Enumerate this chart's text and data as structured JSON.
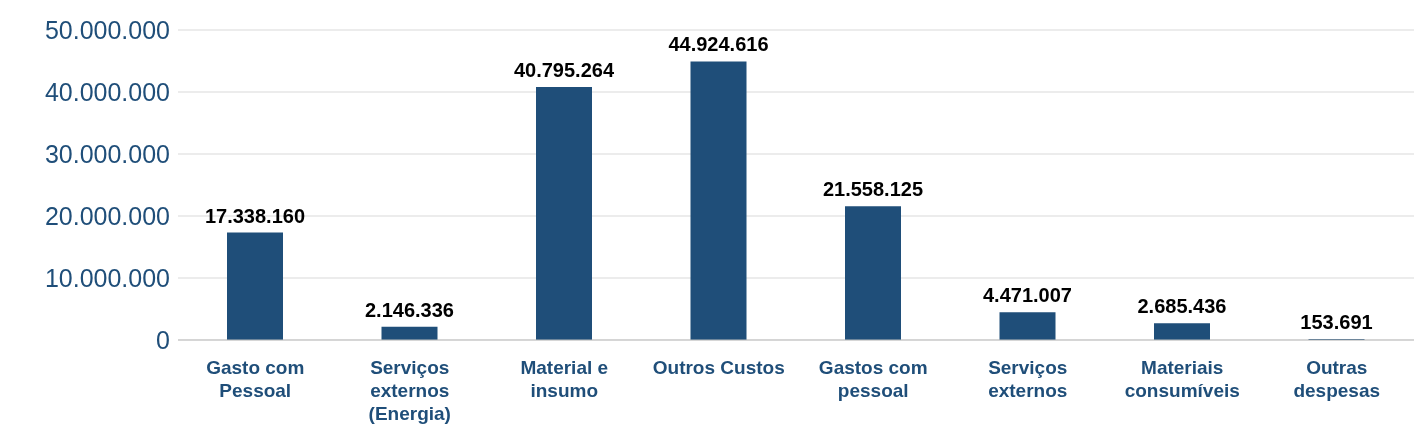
{
  "chart_data": {
    "type": "bar",
    "categories": [
      "Gasto com Pessoal",
      "Serviços externos (Energia)",
      "Material e insumo",
      "Outros Custos",
      "Gastos com pessoal",
      "Serviços externos",
      "Materiais consumíveis",
      "Outras despesas"
    ],
    "values": [
      17338160,
      2146336,
      40795264,
      44924616,
      21558125,
      4471007,
      2685436,
      153691
    ],
    "color": "#1f4e79",
    "ylim": [
      0,
      50000000
    ],
    "yticks": [
      {
        "value": 0,
        "label": "0"
      },
      {
        "value": 10000000,
        "label": "10.000.000"
      },
      {
        "value": 20000000,
        "label": "20.000.000"
      },
      {
        "value": 30000000,
        "label": "30.000.000"
      },
      {
        "value": 40000000,
        "label": "40.000.000"
      },
      {
        "value": 50000000,
        "label": "50.000.000"
      }
    ],
    "value_labels": [
      "17.338.160",
      "2.146.336",
      "40.795.264",
      "44.924.616",
      "21.558.125",
      "4.471.007",
      "2.685.436",
      "153.691"
    ],
    "grid": "y"
  }
}
